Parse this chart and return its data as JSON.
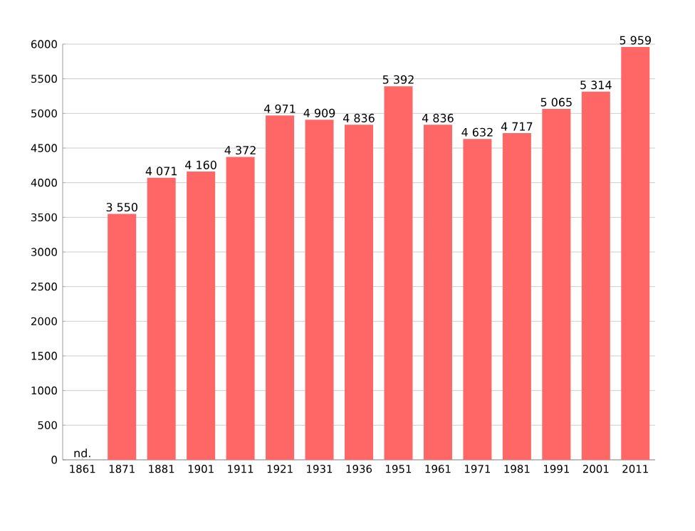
{
  "chart_data": {
    "type": "bar",
    "categories": [
      "1861",
      "1871",
      "1881",
      "1901",
      "1911",
      "1921",
      "1931",
      "1936",
      "1951",
      "1961",
      "1971",
      "1981",
      "1991",
      "2001",
      "2011"
    ],
    "values": [
      null,
      3550,
      4071,
      4160,
      4372,
      4971,
      4909,
      4836,
      5392,
      4836,
      4632,
      4717,
      5065,
      5314,
      5959
    ],
    "value_labels": [
      "nd.",
      "3 550",
      "4 071",
      "4 160",
      "4 372",
      "4 971",
      "4 909",
      "4 836",
      "5 392",
      "4 836",
      "4 632",
      "4 717",
      "5 065",
      "5 314",
      "5 959"
    ],
    "color": "#ff6666",
    "ylim": [
      0,
      6000
    ],
    "yticks": [
      0,
      500,
      1000,
      1500,
      2000,
      2500,
      3000,
      3500,
      4000,
      4500,
      5000,
      5500,
      6000
    ],
    "grid": "y"
  }
}
